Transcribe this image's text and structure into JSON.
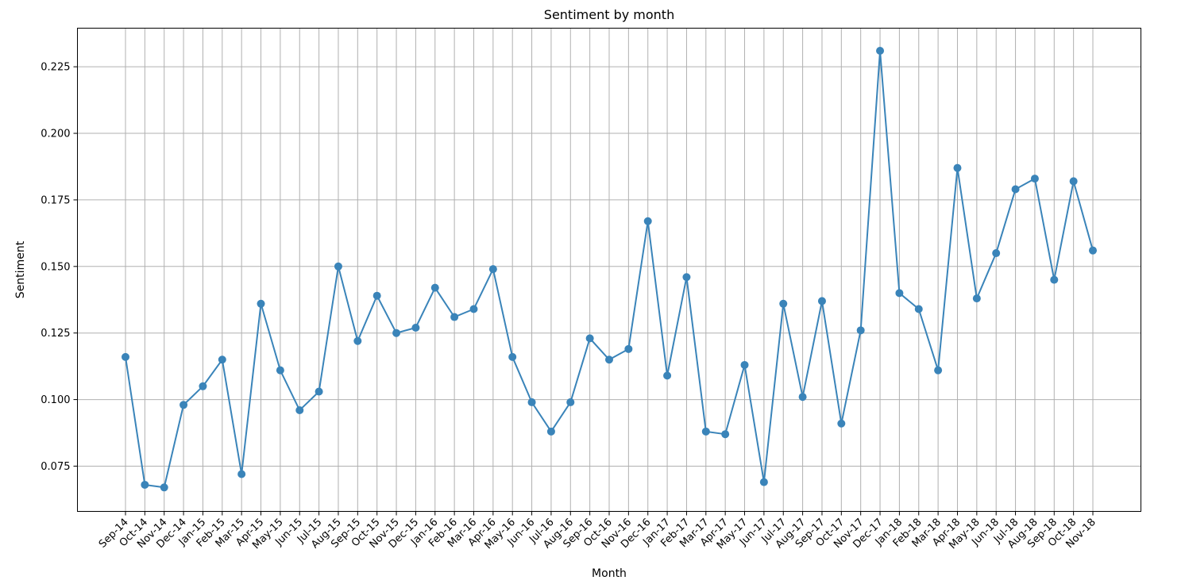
{
  "chart_data": {
    "type": "line",
    "title": "Sentiment by month",
    "xlabel": "Month",
    "ylabel": "Sentiment",
    "ylim": [
      0.058,
      0.2395
    ],
    "yticks": [
      0.075,
      0.1,
      0.125,
      0.15,
      0.175,
      0.2,
      0.225
    ],
    "ytick_labels": [
      "0.075",
      "0.100",
      "0.125",
      "0.150",
      "0.175",
      "0.200",
      "0.225"
    ],
    "grid": true,
    "color": "#3a84b9",
    "categories": [
      "Sep-14",
      "Oct-14",
      "Nov-14",
      "Dec-14",
      "Jan-15",
      "Feb-15",
      "Mar-15",
      "Apr-15",
      "May-15",
      "Jun-15",
      "Jul-15",
      "Aug-15",
      "Sep-15",
      "Oct-15",
      "Nov-15",
      "Dec-15",
      "Jan-16",
      "Feb-16",
      "Mar-16",
      "Apr-16",
      "May-16",
      "Jun-16",
      "Jul-16",
      "Aug-16",
      "Sep-16",
      "Oct-16",
      "Nov-16",
      "Dec-16",
      "Jan-17",
      "Feb-17",
      "Mar-17",
      "Apr-17",
      "May-17",
      "Jun-17",
      "Jul-17",
      "Aug-17",
      "Sep-17",
      "Oct-17",
      "Nov-17",
      "Dec-17",
      "Jan-18",
      "Feb-18",
      "Mar-18",
      "Apr-18",
      "May-18",
      "Jun-18",
      "Jul-18",
      "Aug-18",
      "Sep-18",
      "Oct-18",
      "Nov-18"
    ],
    "values": [
      0.116,
      0.068,
      0.067,
      0.098,
      0.105,
      0.115,
      0.072,
      0.136,
      0.111,
      0.096,
      0.103,
      0.15,
      0.122,
      0.139,
      0.125,
      0.127,
      0.142,
      0.131,
      0.134,
      0.149,
      0.116,
      0.099,
      0.088,
      0.099,
      0.123,
      0.115,
      0.119,
      0.167,
      0.109,
      0.146,
      0.088,
      0.087,
      0.113,
      0.069,
      0.136,
      0.101,
      0.137,
      0.091,
      0.126,
      0.231,
      0.14,
      0.134,
      0.111,
      0.187,
      0.138,
      0.155,
      0.179,
      0.183,
      0.145,
      0.182,
      0.156
    ]
  }
}
